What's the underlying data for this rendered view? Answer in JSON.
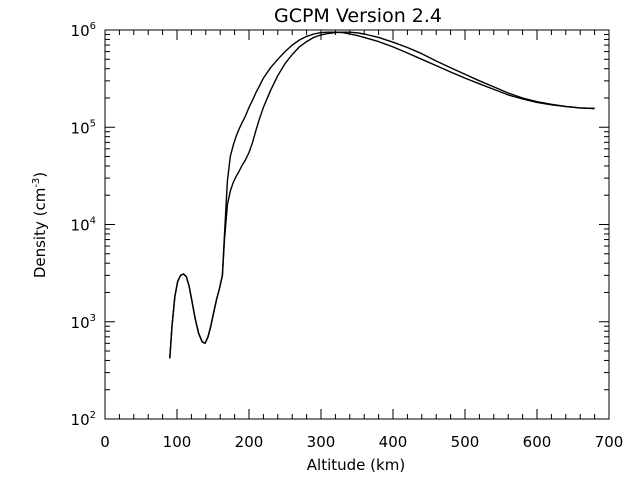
{
  "chart_data": {
    "type": "line",
    "title": "GCPM Version 2.4",
    "xlabel": "Altitude (km)",
    "ylabel_main": "Density (cm",
    "ylabel_sup": "-3",
    "ylabel_close": ")",
    "xlim": [
      0,
      700
    ],
    "ylim": [
      100,
      1000000
    ],
    "yscale": "log",
    "grid": false,
    "x_ticks": [
      0,
      100,
      200,
      300,
      400,
      500,
      600,
      700
    ],
    "x_tick_labels": [
      "0",
      "100",
      "200",
      "300",
      "400",
      "500",
      "600",
      "700"
    ],
    "y_ticks": [
      {
        "value": 100,
        "base": "10",
        "exp": "2"
      },
      {
        "value": 1000,
        "base": "10",
        "exp": "3"
      },
      {
        "value": 10000,
        "base": "10",
        "exp": "4"
      },
      {
        "value": 100000,
        "base": "10",
        "exp": "5"
      },
      {
        "value": 1000000,
        "base": "10",
        "exp": "6"
      }
    ],
    "series": [
      {
        "x": [
          90,
          93,
          97,
          101,
          105,
          109,
          113,
          117,
          121,
          125,
          130,
          135,
          139,
          143,
          147,
          151,
          155,
          159,
          163,
          166,
          170,
          174,
          178,
          182,
          186,
          190,
          195,
          200,
          205,
          210,
          215,
          220,
          230,
          240,
          250,
          260,
          270,
          280,
          290,
          300,
          310,
          320,
          330,
          340,
          350,
          360,
          380,
          400,
          420,
          440,
          460,
          480,
          500,
          520,
          540,
          560,
          580,
          600,
          620,
          640,
          660,
          680
        ],
        "y": [
          420,
          900,
          1800,
          2600,
          3000,
          3100,
          2900,
          2300,
          1600,
          1100,
          760,
          620,
          600,
          700,
          900,
          1250,
          1700,
          2200,
          3000,
          8000,
          28000,
          50000,
          65000,
          80000,
          95000,
          110000,
          130000,
          160000,
          190000,
          230000,
          270000,
          320000,
          410000,
          500000,
          600000,
          700000,
          790000,
          860000,
          910000,
          940000,
          950000,
          950000,
          940000,
          910000,
          880000,
          840000,
          760000,
          670000,
          580000,
          500000,
          430000,
          370000,
          320000,
          280000,
          245000,
          215000,
          195000,
          180000,
          170000,
          163000,
          158000,
          156000
        ]
      },
      {
        "x": [
          90,
          93,
          97,
          101,
          105,
          109,
          113,
          117,
          121,
          125,
          130,
          135,
          139,
          143,
          147,
          151,
          155,
          159,
          163,
          166,
          170,
          174,
          178,
          182,
          186,
          190,
          195,
          200,
          205,
          210,
          215,
          220,
          230,
          240,
          250,
          260,
          270,
          280,
          290,
          300,
          310,
          320,
          330,
          340,
          350,
          360,
          380,
          400,
          420,
          440,
          460,
          480,
          500,
          520,
          540,
          560,
          580,
          600,
          620,
          640,
          660,
          680
        ],
        "y": [
          420,
          900,
          1800,
          2600,
          3000,
          3100,
          2900,
          2300,
          1600,
          1100,
          760,
          620,
          600,
          700,
          900,
          1250,
          1700,
          2200,
          3000,
          7000,
          16000,
          22000,
          27000,
          31000,
          35000,
          40000,
          46000,
          55000,
          70000,
          95000,
          125000,
          160000,
          240000,
          340000,
          450000,
          560000,
          670000,
          760000,
          840000,
          890000,
          920000,
          940000,
          950000,
          950000,
          935000,
          910000,
          840000,
          750000,
          660000,
          570000,
          480000,
          410000,
          350000,
          300000,
          260000,
          225000,
          200000,
          183000,
          172000,
          164000,
          158000,
          156000
        ]
      }
    ]
  }
}
